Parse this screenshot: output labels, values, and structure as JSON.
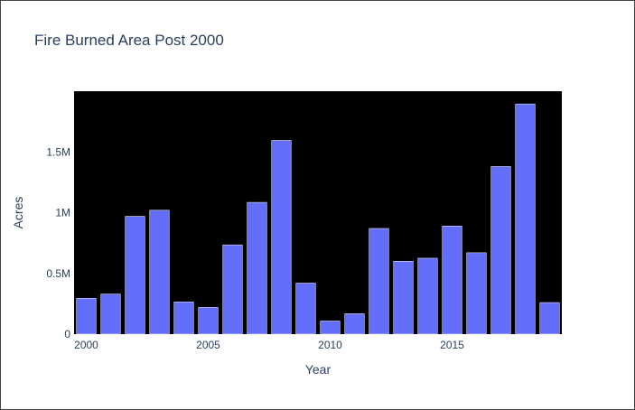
{
  "chart_data": {
    "type": "bar",
    "title": "Fire Burned Area Post 2000",
    "xlabel": "Year",
    "ylabel": "Acres",
    "x": [
      2000,
      2001,
      2002,
      2003,
      2004,
      2005,
      2006,
      2007,
      2008,
      2009,
      2010,
      2011,
      2012,
      2013,
      2014,
      2015,
      2016,
      2017,
      2018,
      2019
    ],
    "values": [
      295000,
      330000,
      970000,
      1020000,
      265000,
      220000,
      735000,
      1085000,
      1595000,
      420000,
      108000,
      168000,
      870000,
      600000,
      625000,
      890000,
      670000,
      1380000,
      1895000,
      260000
    ],
    "x_ticks": [
      "2000",
      "2005",
      "2010",
      "2015"
    ],
    "y_ticks": [
      "0",
      "0.5M",
      "1M",
      "1.5M"
    ],
    "xlim": [
      1999.5,
      2019.5
    ],
    "ylim": [
      0,
      2000000
    ],
    "bar_color": "#636efa",
    "plot_background": "#000000",
    "grid": false
  }
}
